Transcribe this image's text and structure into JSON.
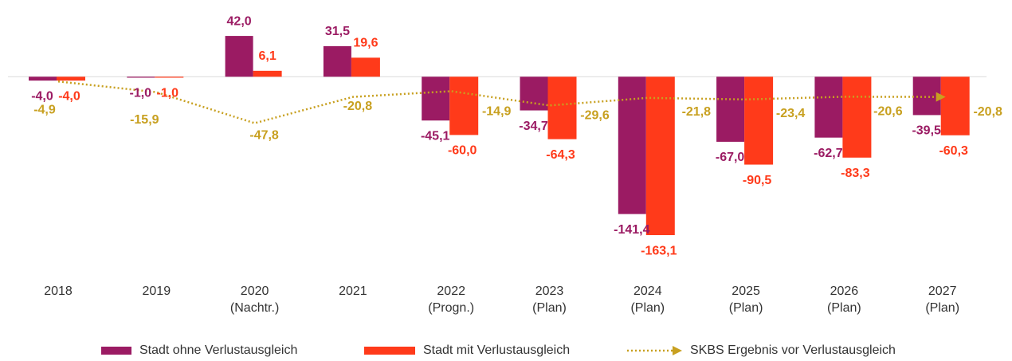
{
  "chart_data": {
    "type": "bar",
    "categories": [
      [
        "2018"
      ],
      [
        "2019"
      ],
      [
        "2020",
        "(Nachtr.)"
      ],
      [
        "2021"
      ],
      [
        "2022",
        "(Progn.)"
      ],
      [
        "2023",
        "(Plan)"
      ],
      [
        "2024",
        "(Plan)"
      ],
      [
        "2025",
        "(Plan)"
      ],
      [
        "2026",
        "(Plan)"
      ],
      [
        "2027",
        "(Plan)"
      ]
    ],
    "ylim": [
      -200,
      79
    ],
    "series": [
      {
        "name": "Stadt ohne Verlustausgleich",
        "color": "#9b1b63",
        "values": [
          -4.0,
          -1.0,
          42.0,
          31.5,
          -45.1,
          -34.7,
          -141.4,
          -67.0,
          -62.7,
          -39.5
        ],
        "value_labels": [
          "-4,0",
          "-1,0",
          "42,0",
          "31,5",
          "-45,1",
          "-34,7",
          "-141,4",
          "-67,0",
          "-62,7",
          "-39,5"
        ]
      },
      {
        "name": "Stadt mit Verlustausgleich",
        "color": "#ff3a1a",
        "values": [
          -4.0,
          -1.0,
          6.1,
          19.6,
          -60.0,
          -64.3,
          -163.1,
          -90.5,
          -83.3,
          -60.3
        ],
        "value_labels": [
          "-4,0",
          "-1,0",
          "6,1",
          "19,6",
          "-60,0",
          "-64,3",
          "-163,1",
          "-90,5",
          "-83,3",
          "-60,3"
        ]
      },
      {
        "name": "SKBS Ergebnis vor Verlustausgleich",
        "type": "line",
        "color": "#c8a020",
        "values": [
          -4.9,
          -15.9,
          -47.8,
          -20.8,
          -14.9,
          -29.6,
          -21.8,
          -23.4,
          -20.6,
          -20.8
        ],
        "value_labels": [
          "-4,9",
          "-15,9",
          "-47,8",
          "-20,8",
          "-14,9",
          "-29,6",
          "-21,8",
          "-23,4",
          "-20,6",
          "-20,8"
        ]
      }
    ]
  }
}
